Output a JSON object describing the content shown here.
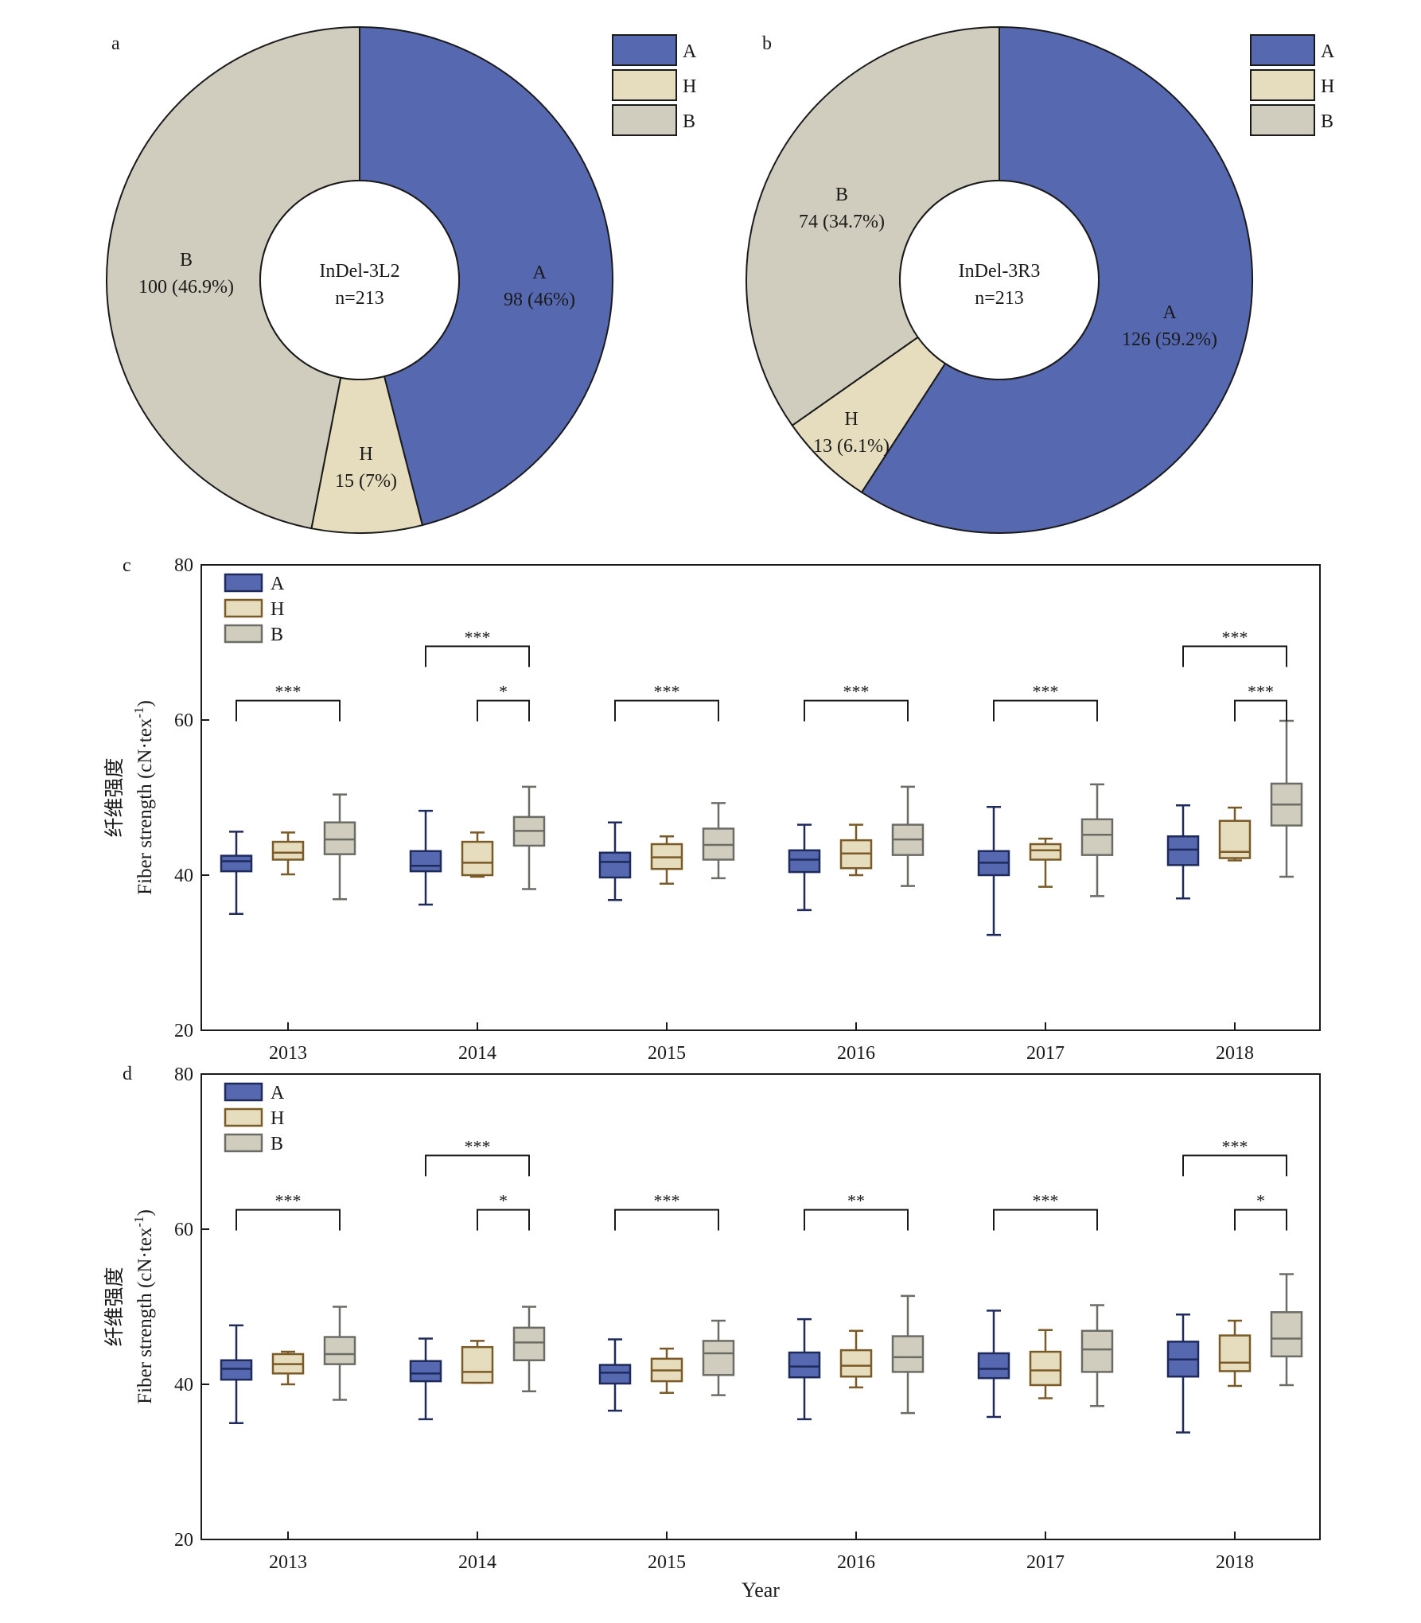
{
  "colors": {
    "A": "#5668B0",
    "H": "#E6DDBE",
    "B": "#D0CDBF",
    "A_line": "#1F2A5C",
    "H_line": "#7A5A26",
    "B_line": "#6C6C66",
    "edge": "#1a1a1a"
  },
  "chart_data": [
    {
      "panel": "a",
      "type": "pie",
      "center_label": [
        "InDel-3L2",
        "n=213"
      ],
      "legend": [
        "A",
        "H",
        "B"
      ],
      "slices": [
        {
          "name": "A",
          "value": 98,
          "label": "98 (46%)"
        },
        {
          "name": "H",
          "value": 15,
          "label": "15 (7%)"
        },
        {
          "name": "B",
          "value": 100,
          "label": "100 (46.9%)"
        }
      ]
    },
    {
      "panel": "b",
      "type": "pie",
      "center_label": [
        "InDel-3R3",
        "n=213"
      ],
      "legend": [
        "A",
        "H",
        "B"
      ],
      "slices": [
        {
          "name": "A",
          "value": 126,
          "label": "126 (59.2%)"
        },
        {
          "name": "H",
          "value": 13,
          "label": "13 (6.1%)"
        },
        {
          "name": "B",
          "value": 74,
          "label": "74 (34.7%)"
        }
      ]
    },
    {
      "panel": "c",
      "type": "box",
      "ylabel_zh": "纤维强度",
      "ylabel_en": "Fiber strength (cN·tex",
      "ylabel_sup": "-1",
      "ylabel_close": ")",
      "ylim": [
        20,
        80
      ],
      "yticks": [
        20,
        40,
        60,
        80
      ],
      "categories": [
        "2013",
        "2014",
        "2015",
        "2016",
        "2017",
        "2018"
      ],
      "legend": [
        "A",
        "H",
        "B"
      ],
      "series": [
        {
          "name": "A",
          "boxes": [
            [
              35,
              40.5,
              41.8,
              42.5,
              45.6
            ],
            [
              36.2,
              40.5,
              41.2,
              43.1,
              48.3
            ],
            [
              36.8,
              39.7,
              41.7,
              42.9,
              46.8
            ],
            [
              35.5,
              40.4,
              42.0,
              43.2,
              46.5
            ],
            [
              32.3,
              40.0,
              41.6,
              43.1,
              48.8
            ],
            [
              37.0,
              41.3,
              43.3,
              45.0,
              49.0
            ]
          ]
        },
        {
          "name": "H",
          "boxes": [
            [
              40.1,
              42.0,
              42.9,
              44.3,
              45.5
            ],
            [
              39.8,
              40.0,
              41.6,
              44.3,
              45.5
            ],
            [
              38.9,
              40.8,
              42.3,
              44.0,
              45.0
            ],
            [
              40.0,
              40.9,
              42.8,
              44.5,
              46.5
            ],
            [
              38.5,
              42.0,
              43.2,
              44.0,
              44.7
            ],
            [
              41.9,
              42.2,
              43.0,
              47.0,
              48.7
            ]
          ]
        },
        {
          "name": "B",
          "boxes": [
            [
              36.9,
              42.7,
              44.6,
              46.8,
              50.4
            ],
            [
              38.2,
              43.8,
              45.7,
              47.5,
              51.4
            ],
            [
              39.6,
              42.0,
              43.9,
              46.0,
              49.3
            ],
            [
              38.6,
              42.6,
              44.6,
              46.5,
              51.4
            ],
            [
              37.3,
              42.6,
              45.2,
              47.2,
              51.7
            ],
            [
              39.8,
              46.4,
              49.1,
              51.8,
              59.9
            ]
          ]
        }
      ],
      "significance": [
        {
          "category": 0,
          "from": "A",
          "to": "B",
          "level": 1,
          "label": "***"
        },
        {
          "category": 1,
          "from": "A",
          "to": "B",
          "level": 2,
          "label": "***"
        },
        {
          "category": 1,
          "from": "H",
          "to": "B",
          "level": 1,
          "label": "*"
        },
        {
          "category": 2,
          "from": "A",
          "to": "B",
          "level": 1,
          "label": "***"
        },
        {
          "category": 3,
          "from": "A",
          "to": "B",
          "level": 1,
          "label": "***"
        },
        {
          "category": 4,
          "from": "A",
          "to": "B",
          "level": 1,
          "label": "***"
        },
        {
          "category": 5,
          "from": "A",
          "to": "B",
          "level": 2,
          "label": "***"
        },
        {
          "category": 5,
          "from": "H",
          "to": "B",
          "level": 1,
          "label": "***"
        }
      ]
    },
    {
      "panel": "d",
      "type": "box",
      "ylabel_zh": "纤维强度",
      "ylabel_en": "Fiber strength (cN·tex",
      "ylabel_sup": "-1",
      "ylabel_close": ")",
      "xlabel": "Year",
      "ylim": [
        20,
        80
      ],
      "yticks": [
        20,
        40,
        60,
        80
      ],
      "categories": [
        "2013",
        "2014",
        "2015",
        "2016",
        "2017",
        "2018"
      ],
      "legend": [
        "A",
        "H",
        "B"
      ],
      "series": [
        {
          "name": "A",
          "boxes": [
            [
              35.0,
              40.6,
              42.0,
              43.1,
              47.6
            ],
            [
              35.5,
              40.4,
              41.4,
              43.0,
              45.9
            ],
            [
              36.6,
              40.1,
              41.5,
              42.5,
              45.8
            ],
            [
              35.5,
              40.9,
              42.3,
              44.1,
              48.4
            ],
            [
              35.8,
              40.8,
              42.0,
              44.0,
              49.5
            ],
            [
              33.8,
              41.0,
              43.2,
              45.5,
              49.0
            ]
          ]
        },
        {
          "name": "H",
          "boxes": [
            [
              40.0,
              41.4,
              42.6,
              43.9,
              44.2
            ],
            [
              40.2,
              40.2,
              41.6,
              44.8,
              45.6
            ],
            [
              38.9,
              40.4,
              41.8,
              43.3,
              44.6
            ],
            [
              39.6,
              41.0,
              42.4,
              44.4,
              46.9
            ],
            [
              38.2,
              39.9,
              41.8,
              44.2,
              47.0
            ],
            [
              39.8,
              41.7,
              42.8,
              46.3,
              48.2
            ]
          ]
        },
        {
          "name": "B",
          "boxes": [
            [
              38.0,
              42.6,
              43.9,
              46.1,
              50.0
            ],
            [
              39.1,
              43.1,
              45.4,
              47.3,
              50.0
            ],
            [
              38.6,
              41.2,
              44.0,
              45.6,
              48.2
            ],
            [
              36.3,
              41.6,
              43.5,
              46.2,
              51.4
            ],
            [
              37.2,
              41.6,
              44.5,
              46.9,
              50.2
            ],
            [
              39.9,
              43.6,
              45.9,
              49.3,
              54.2
            ]
          ]
        }
      ],
      "significance": [
        {
          "category": 0,
          "from": "A",
          "to": "B",
          "level": 1,
          "label": "***"
        },
        {
          "category": 1,
          "from": "A",
          "to": "B",
          "level": 2,
          "label": "***"
        },
        {
          "category": 1,
          "from": "H",
          "to": "B",
          "level": 1,
          "label": "*"
        },
        {
          "category": 2,
          "from": "A",
          "to": "B",
          "level": 1,
          "label": "***"
        },
        {
          "category": 3,
          "from": "A",
          "to": "B",
          "level": 1,
          "label": "**"
        },
        {
          "category": 4,
          "from": "A",
          "to": "B",
          "level": 1,
          "label": "***"
        },
        {
          "category": 5,
          "from": "A",
          "to": "B",
          "level": 2,
          "label": "***"
        },
        {
          "category": 5,
          "from": "H",
          "to": "B",
          "level": 1,
          "label": "*"
        }
      ]
    }
  ]
}
